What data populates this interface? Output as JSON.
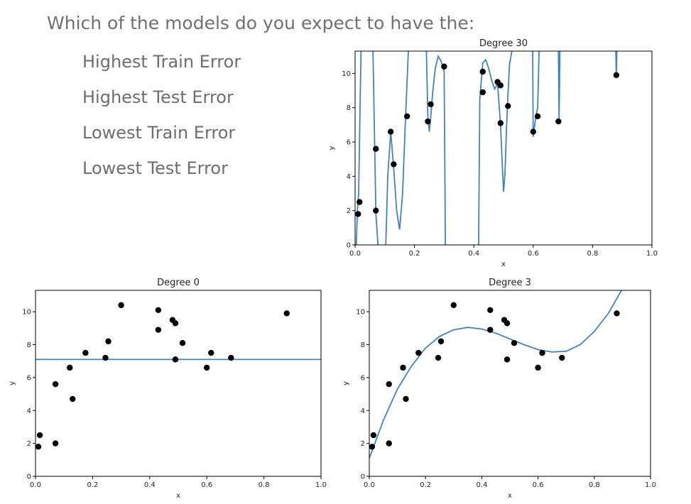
{
  "prompt": {
    "question": "Which of the models do you expect to have the:",
    "options": [
      "Highest Train Error",
      "Highest Test Error",
      "Lowest Train Error",
      "Lowest Test Error"
    ]
  },
  "colors": {
    "curve": "#4682b4",
    "points": "#000000"
  },
  "chart_data": [
    {
      "type": "line",
      "title": "Degree 30",
      "xlabel": "x",
      "ylabel": "y",
      "xlim": [
        0,
        1
      ],
      "ylim": [
        0,
        11.3
      ],
      "xticks": [
        "0.0",
        "0.2",
        "0.4",
        "0.6",
        "0.8",
        "1.0"
      ],
      "yticks": [
        "0",
        "2",
        "4",
        "6",
        "8",
        "10"
      ],
      "points": {
        "x": [
          0.01,
          0.015,
          0.07,
          0.07,
          0.12,
          0.13,
          0.175,
          0.245,
          0.255,
          0.3,
          0.43,
          0.43,
          0.48,
          0.49,
          0.49,
          0.515,
          0.6,
          0.615,
          0.685,
          0.88
        ],
        "y": [
          1.8,
          2.5,
          2.0,
          5.6,
          6.6,
          4.7,
          7.5,
          7.2,
          8.2,
          10.4,
          8.9,
          10.1,
          9.5,
          9.3,
          7.1,
          8.1,
          6.6,
          7.5,
          7.2,
          9.9
        ]
      },
      "fit": {
        "x": [
          0.0,
          0.008,
          0.012,
          0.02,
          0.028,
          0.035,
          0.06,
          0.07,
          0.085,
          0.1,
          0.11,
          0.12,
          0.13,
          0.14,
          0.15,
          0.16,
          0.17,
          0.18,
          0.185,
          0.24,
          0.245,
          0.25,
          0.255,
          0.262,
          0.27,
          0.28,
          0.29,
          0.3,
          0.305,
          0.415,
          0.42,
          0.43,
          0.44,
          0.45,
          0.46,
          0.47,
          0.48,
          0.49,
          0.495,
          0.5,
          0.505,
          0.51,
          0.515,
          0.52,
          0.53,
          0.54,
          0.545,
          0.598,
          0.6,
          0.605,
          0.61,
          0.615,
          0.62,
          0.685,
          0.687,
          0.69,
          0.878,
          0.88,
          0.882
        ],
        "y": [
          -2.0,
          2.0,
          3.0,
          11.5,
          11.5,
          11.5,
          11.5,
          1.8,
          -2.0,
          -2.0,
          4.0,
          6.6,
          4.5,
          2.0,
          0.9,
          3.0,
          7.5,
          11.5,
          11.5,
          11.5,
          7.5,
          6.6,
          7.5,
          9.0,
          10.3,
          11.0,
          10.7,
          10.1,
          -2.0,
          -2.0,
          8.5,
          10.6,
          10.8,
          10.3,
          9.6,
          9.1,
          9.4,
          7.0,
          5.0,
          3.1,
          4.2,
          6.8,
          8.8,
          10.5,
          11.5,
          11.5,
          11.5,
          11.5,
          6.3,
          7.0,
          7.6,
          8.0,
          11.5,
          11.5,
          7.2,
          11.5,
          11.5,
          9.9,
          11.5
        ]
      }
    },
    {
      "type": "line",
      "title": "Degree 0",
      "xlabel": "x",
      "ylabel": "y",
      "xlim": [
        0,
        1
      ],
      "ylim": [
        0,
        11.3
      ],
      "xticks": [
        "0.0",
        "0.2",
        "0.4",
        "0.6",
        "0.8",
        "1.0"
      ],
      "yticks": [
        "0",
        "2",
        "4",
        "6",
        "8",
        "10"
      ],
      "points": {
        "x": [
          0.01,
          0.015,
          0.07,
          0.07,
          0.12,
          0.13,
          0.175,
          0.245,
          0.255,
          0.3,
          0.43,
          0.43,
          0.48,
          0.49,
          0.49,
          0.515,
          0.6,
          0.615,
          0.685,
          0.88
        ],
        "y": [
          1.8,
          2.5,
          2.0,
          5.6,
          6.6,
          4.7,
          7.5,
          7.2,
          8.2,
          10.4,
          8.9,
          10.1,
          9.5,
          9.3,
          7.1,
          8.1,
          6.6,
          7.5,
          7.2,
          9.9
        ]
      },
      "fit": {
        "x": [
          0,
          1
        ],
        "y": [
          7.1,
          7.1
        ]
      }
    },
    {
      "type": "line",
      "title": "Degree 3",
      "xlabel": "x",
      "ylabel": "y",
      "xlim": [
        0,
        1
      ],
      "ylim": [
        0,
        11.3
      ],
      "xticks": [
        "0.0",
        "0.2",
        "0.4",
        "0.6",
        "0.8",
        "1.0"
      ],
      "yticks": [
        "0",
        "2",
        "4",
        "6",
        "8",
        "10"
      ],
      "points": {
        "x": [
          0.01,
          0.015,
          0.07,
          0.07,
          0.12,
          0.13,
          0.175,
          0.245,
          0.255,
          0.3,
          0.43,
          0.43,
          0.48,
          0.49,
          0.49,
          0.515,
          0.6,
          0.615,
          0.685,
          0.88
        ],
        "y": [
          1.8,
          2.5,
          2.0,
          5.6,
          6.6,
          4.7,
          7.5,
          7.2,
          8.2,
          10.4,
          8.9,
          10.1,
          9.5,
          9.3,
          7.1,
          8.1,
          6.6,
          7.5,
          7.2,
          9.9
        ]
      },
      "fit": {
        "x": [
          0.0,
          0.05,
          0.1,
          0.15,
          0.2,
          0.25,
          0.3,
          0.35,
          0.4,
          0.45,
          0.5,
          0.55,
          0.6,
          0.65,
          0.7,
          0.75,
          0.8,
          0.85,
          0.9,
          0.95
        ],
        "y": [
          1.1,
          3.4,
          5.3,
          6.7,
          7.8,
          8.5,
          8.9,
          9.05,
          8.95,
          8.7,
          8.35,
          8.0,
          7.7,
          7.55,
          7.6,
          8.0,
          8.8,
          9.9,
          11.4,
          13.2
        ]
      }
    }
  ]
}
